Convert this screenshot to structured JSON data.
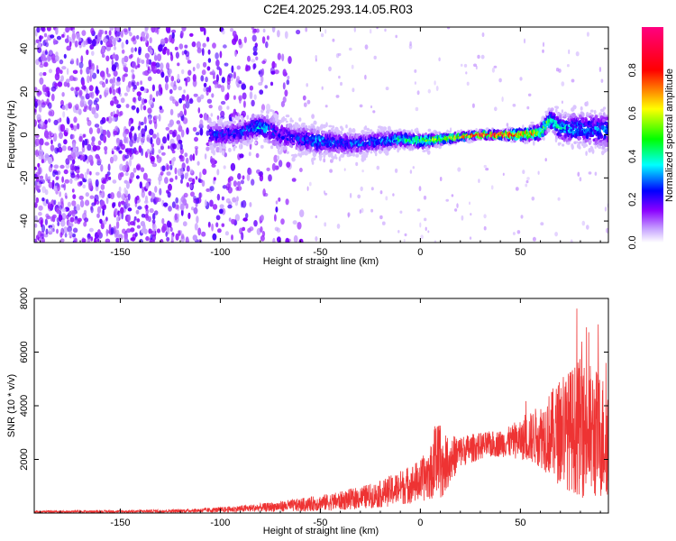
{
  "title": "C2E4.2025.293.14.05.R03",
  "chart_data": [
    {
      "type": "heatmap",
      "xlabel": "Height of straight line (km)",
      "ylabel": "Frequency (Hz)",
      "xlim": [
        -193,
        94
      ],
      "ylim": [
        -50,
        50
      ],
      "xticks": [
        -150,
        -100,
        -50,
        0,
        50
      ],
      "yticks": [
        -40,
        -20,
        0,
        20,
        40
      ],
      "colorbar": {
        "label": "Normalized spectral amplitude",
        "range": [
          0,
          1
        ],
        "ticks": [
          0.0,
          0.2,
          0.4,
          0.6,
          0.8
        ],
        "colormap": [
          "#ffffff",
          "#8a00ff",
          "#0000ff",
          "#00ffff",
          "#00ff00",
          "#ffff00",
          "#ff0000",
          "#ff0080"
        ]
      },
      "ridge": {
        "x": [
          -100,
          -90,
          -80,
          -70,
          -60,
          -50,
          -40,
          -30,
          -20,
          -10,
          0,
          10,
          20,
          30,
          40,
          50,
          60,
          65,
          70,
          80,
          90
        ],
        "frequency": [
          0,
          1,
          4,
          0,
          -2,
          -3,
          -4,
          -4,
          -3,
          -2,
          -3,
          -2,
          -1,
          0,
          0,
          0,
          1,
          7,
          3,
          3,
          2
        ],
        "amplitude": [
          0.25,
          0.25,
          0.35,
          0.2,
          0.25,
          0.3,
          0.25,
          0.3,
          0.3,
          0.4,
          0.45,
          0.55,
          0.7,
          0.85,
          0.95,
          0.8,
          0.6,
          0.45,
          0.35,
          0.3,
          0.3
        ],
        "spread_hz": [
          6,
          6,
          6,
          8,
          7,
          7,
          6,
          5,
          5,
          4,
          4,
          3,
          2,
          2,
          2,
          3,
          4,
          5,
          7,
          8,
          9
        ]
      },
      "noise_cloud": {
        "x_range": [
          -193,
          -60
        ],
        "frequency_range": [
          -50,
          50
        ],
        "amplitude": 0.15
      }
    },
    {
      "type": "line",
      "xlabel": "Height of straight line (km)",
      "ylabel": "SNR (10 * v/v)",
      "xlim": [
        -193,
        94
      ],
      "ylim": [
        0,
        8000
      ],
      "xticks": [
        -150,
        -100,
        -50,
        0,
        50
      ],
      "yticks": [
        2000,
        4000,
        6000,
        8000
      ],
      "color": "#ee3333",
      "envelope": {
        "x": [
          -193,
          -150,
          -120,
          -100,
          -80,
          -60,
          -40,
          -20,
          0,
          5,
          10,
          20,
          30,
          40,
          50,
          60,
          70,
          80,
          85,
          90,
          94
        ],
        "mean": [
          50,
          60,
          80,
          120,
          200,
          300,
          450,
          700,
          1200,
          1500,
          1700,
          2300,
          2500,
          2600,
          2700,
          2900,
          3000,
          3200,
          3000,
          2900,
          2800
        ],
        "spread": [
          40,
          50,
          60,
          100,
          150,
          250,
          350,
          500,
          800,
          1000,
          1200,
          600,
          500,
          500,
          700,
          1200,
          2000,
          2600,
          2600,
          2400,
          2200
        ]
      }
    }
  ]
}
